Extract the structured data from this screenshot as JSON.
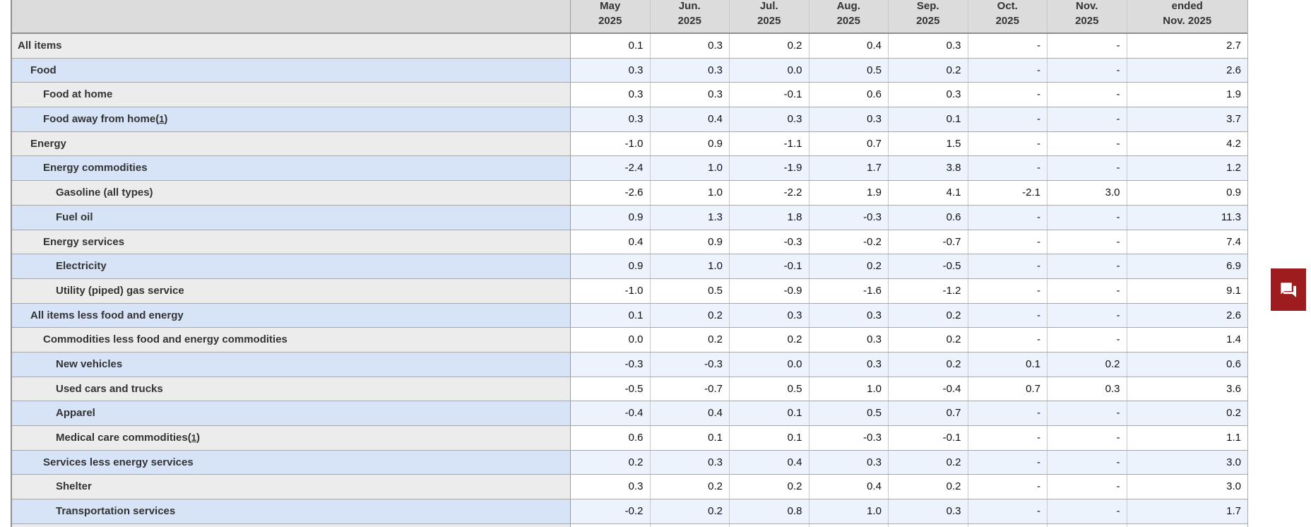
{
  "table": {
    "column_headers": [
      {
        "line1": "May",
        "line2": "2025"
      },
      {
        "line1": "Jun.",
        "line2": "2025"
      },
      {
        "line1": "Jul.",
        "line2": "2025"
      },
      {
        "line1": "Aug.",
        "line2": "2025"
      },
      {
        "line1": "Sep.",
        "line2": "2025"
      },
      {
        "line1": "Oct.",
        "line2": "2025"
      },
      {
        "line1": "Nov.",
        "line2": "2025"
      },
      {
        "line1": "ended",
        "line2": "Nov. 2025"
      }
    ],
    "rows": [
      {
        "label": "All items",
        "indent": 0,
        "values": [
          "0.1",
          "0.3",
          "0.2",
          "0.4",
          "0.3",
          "-",
          "-",
          "2.7"
        ]
      },
      {
        "label": "Food",
        "indent": 1,
        "values": [
          "0.3",
          "0.3",
          "0.0",
          "0.5",
          "0.2",
          "-",
          "-",
          "2.6"
        ]
      },
      {
        "label": "Food at home",
        "indent": 2,
        "values": [
          "0.3",
          "0.3",
          "-0.1",
          "0.6",
          "0.3",
          "-",
          "-",
          "1.9"
        ]
      },
      {
        "label": "Food away from home",
        "footnote": "1",
        "indent": 2,
        "values": [
          "0.3",
          "0.4",
          "0.3",
          "0.3",
          "0.1",
          "-",
          "-",
          "3.7"
        ]
      },
      {
        "label": "Energy",
        "indent": 1,
        "values": [
          "-1.0",
          "0.9",
          "-1.1",
          "0.7",
          "1.5",
          "-",
          "-",
          "4.2"
        ]
      },
      {
        "label": "Energy commodities",
        "indent": 2,
        "values": [
          "-2.4",
          "1.0",
          "-1.9",
          "1.7",
          "3.8",
          "-",
          "-",
          "1.2"
        ]
      },
      {
        "label": "Gasoline (all types)",
        "indent": 3,
        "values": [
          "-2.6",
          "1.0",
          "-2.2",
          "1.9",
          "4.1",
          "-2.1",
          "3.0",
          "0.9"
        ]
      },
      {
        "label": "Fuel oil",
        "indent": 3,
        "values": [
          "0.9",
          "1.3",
          "1.8",
          "-0.3",
          "0.6",
          "-",
          "-",
          "11.3"
        ]
      },
      {
        "label": "Energy services",
        "indent": 2,
        "values": [
          "0.4",
          "0.9",
          "-0.3",
          "-0.2",
          "-0.7",
          "-",
          "-",
          "7.4"
        ]
      },
      {
        "label": "Electricity",
        "indent": 3,
        "values": [
          "0.9",
          "1.0",
          "-0.1",
          "0.2",
          "-0.5",
          "-",
          "-",
          "6.9"
        ]
      },
      {
        "label": "Utility (piped) gas service",
        "indent": 3,
        "values": [
          "-1.0",
          "0.5",
          "-0.9",
          "-1.6",
          "-1.2",
          "-",
          "-",
          "9.1"
        ]
      },
      {
        "label": "All items less food and energy",
        "indent": 1,
        "values": [
          "0.1",
          "0.2",
          "0.3",
          "0.3",
          "0.2",
          "-",
          "-",
          "2.6"
        ]
      },
      {
        "label": "Commodities less food and energy commodities",
        "indent": 2,
        "values": [
          "0.0",
          "0.2",
          "0.2",
          "0.3",
          "0.2",
          "-",
          "-",
          "1.4"
        ]
      },
      {
        "label": "New vehicles",
        "indent": 3,
        "values": [
          "-0.3",
          "-0.3",
          "0.0",
          "0.3",
          "0.2",
          "0.1",
          "0.2",
          "0.6"
        ]
      },
      {
        "label": "Used cars and trucks",
        "indent": 3,
        "values": [
          "-0.5",
          "-0.7",
          "0.5",
          "1.0",
          "-0.4",
          "0.7",
          "0.3",
          "3.6"
        ]
      },
      {
        "label": "Apparel",
        "indent": 3,
        "values": [
          "-0.4",
          "0.4",
          "0.1",
          "0.5",
          "0.7",
          "-",
          "-",
          "0.2"
        ]
      },
      {
        "label": "Medical care commodities",
        "footnote": "1",
        "indent": 3,
        "values": [
          "0.6",
          "0.1",
          "0.1",
          "-0.3",
          "-0.1",
          "-",
          "-",
          "1.1"
        ]
      },
      {
        "label": "Services less energy services",
        "indent": 2,
        "values": [
          "0.2",
          "0.3",
          "0.4",
          "0.3",
          "0.2",
          "-",
          "-",
          "3.0"
        ]
      },
      {
        "label": "Shelter",
        "indent": 3,
        "values": [
          "0.3",
          "0.2",
          "0.2",
          "0.4",
          "0.2",
          "-",
          "-",
          "3.0"
        ]
      },
      {
        "label": "Transportation services",
        "indent": 3,
        "values": [
          "-0.2",
          "0.2",
          "0.8",
          "1.0",
          "0.3",
          "-",
          "-",
          "1.7"
        ]
      }
    ],
    "colors": {
      "header_bg": "#dcdcdc",
      "row_label_gray": "#ececec",
      "row_data_white": "#ffffff",
      "row_label_blue": "#d7e4f8",
      "row_data_blue": "#edf3fc",
      "grid_line": "#a8a8a8"
    }
  },
  "feedback_button": {
    "color": "#9e1b1e",
    "icon": "chat-bubbles-icon"
  }
}
